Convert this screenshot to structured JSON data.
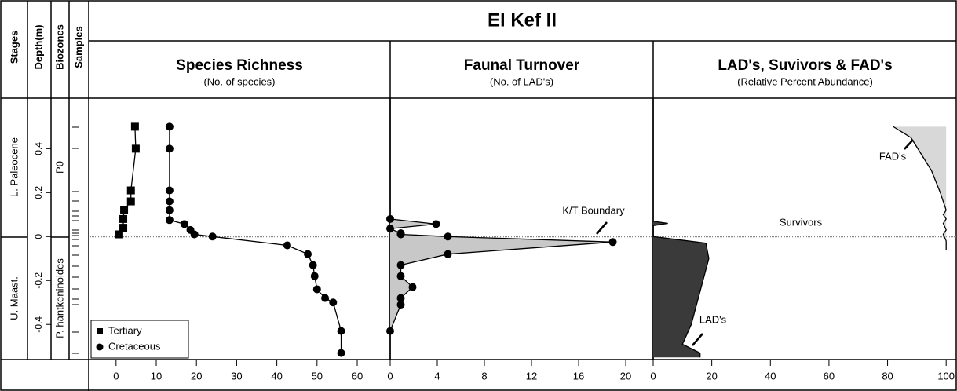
{
  "title": "El Kef II",
  "columns": {
    "stages": "Stages",
    "depth": "Depth(m)",
    "biozones": "Biozones",
    "samples": "Samples"
  },
  "stages": [
    "L. Paleocene",
    "U. Maast."
  ],
  "biozones": [
    "P0",
    "P. hantkeninoides"
  ],
  "depth_axis": {
    "ylim": [
      -0.56,
      0.63
    ],
    "yticks": [
      -0.4,
      -0.2,
      0,
      0.2,
      0.4
    ]
  },
  "chart_data": [
    {
      "type": "line",
      "title": "Species Richness",
      "subtitle": "(No. of species)",
      "xlim": [
        -6.8,
        68.2
      ],
      "xticks": [
        0,
        10,
        20,
        30,
        40,
        50,
        60
      ],
      "legend": "lower left",
      "series": [
        {
          "name": "Tertiary",
          "marker": "square",
          "color": "#000000",
          "depth": [
            0.5,
            0.4,
            0.21,
            0.16,
            0.12,
            0.08,
            0.04,
            0.01
          ],
          "values": [
            4.7,
            4.9,
            3.7,
            3.7,
            2,
            1.8,
            1.8,
            0.8
          ]
        },
        {
          "name": "Cretaceous",
          "marker": "circle",
          "color": "#000000",
          "depth": [
            0.5,
            0.4,
            0.21,
            0.16,
            0.12,
            0.075,
            0.057,
            0.03,
            0.01,
            0,
            -0.04,
            -0.08,
            -0.13,
            -0.18,
            -0.24,
            -0.28,
            -0.3,
            -0.43,
            -0.53
          ],
          "values": [
            13.3,
            13.3,
            13.3,
            13.3,
            13.3,
            13.3,
            17,
            18.5,
            19.5,
            24,
            42.6,
            47.7,
            49,
            49.4,
            50,
            52,
            54,
            56,
            56
          ]
        }
      ]
    },
    {
      "type": "area",
      "title": "Faunal Turnover",
      "subtitle": "(No. of LAD's)",
      "xlim": [
        0,
        22.33
      ],
      "xticks": [
        0,
        4,
        8,
        12,
        16,
        20
      ],
      "annotations": [
        "K/T Boundary"
      ],
      "series": [
        {
          "name": "LAD's",
          "color": "#c8c8c8",
          "marker": "circle",
          "depth": [
            0.08,
            0.057,
            0.036,
            0.015,
            0.01,
            0,
            -0.025,
            -0.08,
            -0.13,
            -0.18,
            -0.23,
            -0.28,
            -0.31,
            -0.43
          ],
          "values": [
            0,
            3.9,
            0,
            0.9,
            0.9,
            4.9,
            18.9,
            4.9,
            0.9,
            0.9,
            1.9,
            0.9,
            0.9,
            0
          ]
        }
      ]
    },
    {
      "type": "area",
      "title": "LAD's, Suvivors & FAD's",
      "subtitle": "(Relative Percent Abundance)",
      "xlim": [
        0,
        103.7
      ],
      "xticks": [
        0,
        20,
        40,
        60,
        80,
        100
      ],
      "annotations": [
        "Survivors"
      ],
      "series": [
        {
          "name": "FAD's",
          "color": "#d8d8d8",
          "fill_to": 100,
          "depth": [
            0.5,
            0.45,
            0.3,
            0.2,
            0.12,
            0.1,
            0.08,
            0.06,
            0.03,
            0.01,
            -0.02,
            -0.06
          ],
          "values": [
            82,
            88,
            95,
            98,
            100,
            99,
            100,
            99,
            100,
            99,
            100,
            100
          ]
        },
        {
          "name": "LAD's",
          "color": "#3a3a3a",
          "fill_to": 0,
          "depth": [
            0.07,
            0.06,
            0.05,
            0,
            -0.03,
            -0.1,
            -0.2,
            -0.3,
            -0.4,
            -0.49,
            -0.53,
            -0.55
          ],
          "values": [
            0,
            5,
            0,
            0,
            18,
            19,
            17,
            15,
            13,
            10,
            16,
            16
          ]
        }
      ]
    }
  ]
}
